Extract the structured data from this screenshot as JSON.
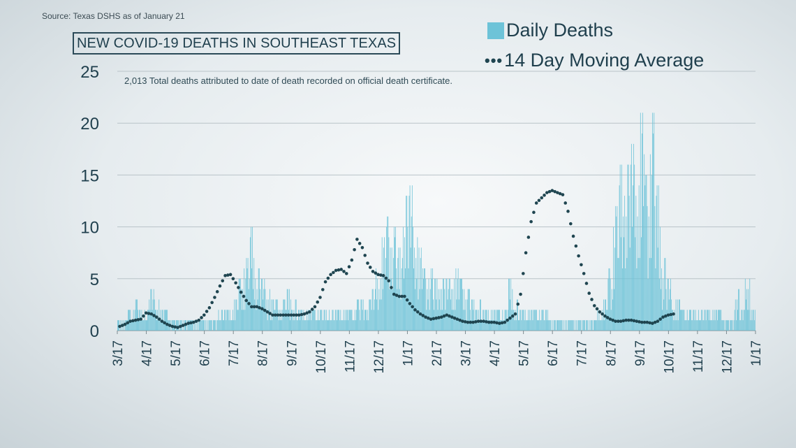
{
  "source": "Source: Texas DSHS as of January 21",
  "title": "NEW COVID-19 DEATHS IN SOUTHEAST TEXAS",
  "note": "2,013 Total deaths attributed to date of death recorded on official death certificate.",
  "legend": {
    "bars": "Daily Deaths",
    "line": "14 Day Moving Average",
    "dots": "•••"
  },
  "colors": {
    "bars": "#6dc3d8",
    "line": "#1f4550",
    "text": "#1f3f4d",
    "grid": "#b9c3c8"
  },
  "chart_data": {
    "type": "bar",
    "title": "NEW COVID-19 DEATHS IN SOUTHEAST TEXAS",
    "xlabel": "",
    "ylabel": "",
    "ylim": [
      0,
      25
    ],
    "yticks": [
      0,
      5,
      10,
      15,
      20,
      25
    ],
    "x_tick_labels": [
      "3/17",
      "4/17",
      "5/17",
      "6/17",
      "7/17",
      "8/17",
      "9/17",
      "10/17",
      "11/17",
      "12/17",
      "1/17",
      "2/17",
      "3/17",
      "4/17",
      "5/17",
      "6/17",
      "7/17",
      "8/17",
      "9/17",
      "10/17",
      "11/17",
      "12/17",
      "1/17"
    ],
    "x_start": "2020-03-17",
    "x_end": "2022-01-17",
    "grid": true,
    "legend_position": "top-right",
    "series": [
      {
        "name": "Daily Deaths",
        "type": "bar",
        "weekly_peak_values": [
          1,
          1,
          2,
          3,
          2,
          2,
          4,
          3,
          2,
          2,
          1,
          1,
          1,
          1,
          1,
          1,
          1,
          1,
          1,
          2,
          2,
          2,
          3,
          5,
          7,
          10,
          6,
          5,
          4,
          3,
          3,
          3,
          4,
          3,
          2,
          2,
          2,
          2,
          2,
          2,
          2,
          2,
          2,
          2,
          2,
          3,
          3,
          3,
          4,
          6,
          9,
          11,
          10,
          8,
          13,
          14,
          10,
          8,
          6,
          6,
          5,
          5,
          5,
          5,
          6,
          5,
          4,
          3,
          3,
          2,
          2,
          2,
          2,
          2,
          5,
          3,
          2,
          2,
          2,
          2,
          2,
          2,
          1,
          1,
          1,
          1,
          1,
          1,
          1,
          1,
          1,
          2,
          3,
          6,
          12,
          16,
          16,
          18,
          16,
          21,
          15,
          21,
          14,
          7,
          5,
          3,
          3,
          2,
          2,
          2,
          2,
          2,
          2,
          2,
          2,
          1,
          1,
          4,
          2,
          5,
          2
        ]
      },
      {
        "name": "14 Day Moving Average",
        "type": "line",
        "style": "dotted",
        "weekly_values": [
          0.4,
          0.6,
          0.9,
          1.0,
          1.1,
          1.7,
          1.6,
          1.3,
          0.9,
          0.6,
          0.4,
          0.3,
          0.5,
          0.7,
          0.8,
          1.0,
          1.5,
          2.2,
          3.2,
          4.3,
          5.3,
          5.4,
          4.6,
          3.7,
          2.9,
          2.3,
          2.3,
          2.1,
          1.8,
          1.5,
          1.5,
          1.5,
          1.5,
          1.5,
          1.5,
          1.6,
          1.8,
          2.3,
          3.2,
          4.7,
          5.4,
          5.8,
          5.9,
          5.5,
          6.8,
          8.8,
          8.0,
          6.5,
          5.7,
          5.4,
          5.3,
          4.8,
          3.5,
          3.3,
          3.3,
          2.6,
          2.0,
          1.6,
          1.3,
          1.1,
          1.2,
          1.3,
          1.5,
          1.3,
          1.1,
          0.9,
          0.8,
          0.8,
          0.9,
          0.9,
          0.8,
          0.8,
          0.7,
          0.8,
          1.2,
          1.6,
          3.5,
          7.5,
          10.5,
          12.3,
          12.8,
          13.3,
          13.5,
          13.3,
          13.1,
          11.5,
          9.1,
          7.2,
          5.5,
          3.6,
          2.4,
          1.8,
          1.4,
          1.1,
          0.9,
          0.9,
          1.0,
          1.0,
          0.9,
          0.8,
          0.8,
          0.7,
          0.9,
          1.3,
          1.5,
          1.6
        ]
      }
    ]
  }
}
